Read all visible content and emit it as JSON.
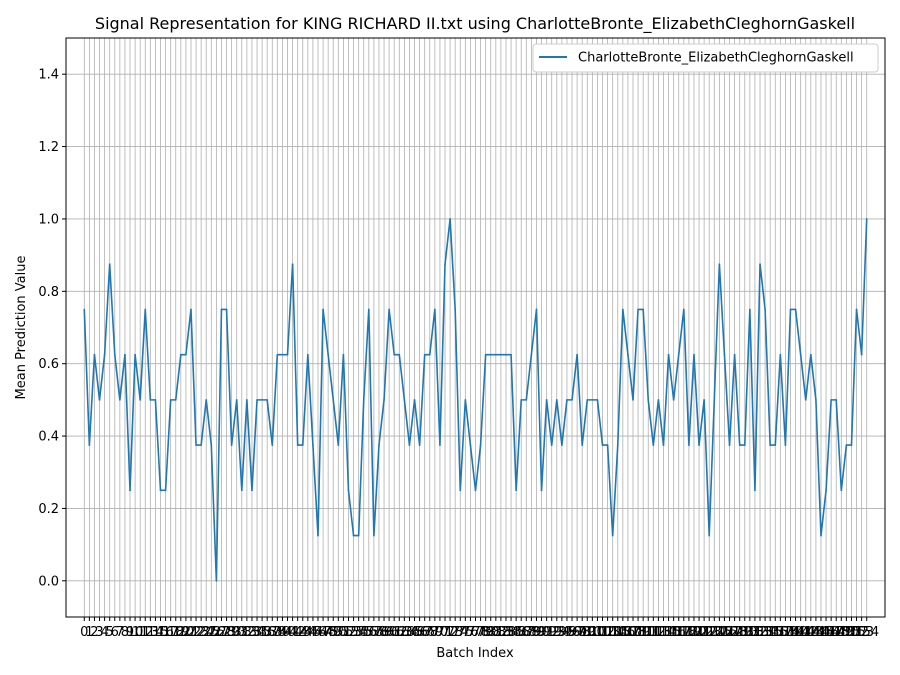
{
  "chart_data": {
    "type": "line",
    "title": "Signal Representation for KING RICHARD II.txt using CharlotteBronte_ElizabethCleghornGaskell",
    "xlabel": "Batch Index",
    "ylabel": "Mean Prediction Value",
    "xlim": [
      -3.6,
      157.6
    ],
    "ylim": [
      -0.1,
      1.5
    ],
    "yticks": [
      0.0,
      0.2,
      0.4,
      0.6,
      0.8,
      1.0,
      1.2,
      1.4
    ],
    "ytick_labels": [
      "0.0",
      "0.2",
      "0.4",
      "0.6",
      "0.8",
      "1.0",
      "1.2",
      "1.4"
    ],
    "grid": true,
    "legend_position": "top-right",
    "series": [
      {
        "name": "CharlotteBronte_ElizabethCleghornGaskell",
        "color": "#1f77b4",
        "values": [
          0.75,
          0.375,
          0.625,
          0.5,
          0.625,
          0.875,
          0.625,
          0.5,
          0.625,
          0.25,
          0.625,
          0.5,
          0.75,
          0.5,
          0.5,
          0.25,
          0.25,
          0.5,
          0.5,
          0.625,
          0.625,
          0.75,
          0.375,
          0.375,
          0.5,
          0.375,
          0.0,
          0.75,
          0.75,
          0.375,
          0.5,
          0.25,
          0.5,
          0.25,
          0.5,
          0.5,
          0.5,
          0.375,
          0.625,
          0.625,
          0.625,
          0.875,
          0.375,
          0.375,
          0.625,
          0.375,
          0.125,
          0.75,
          0.625,
          0.5,
          0.375,
          0.625,
          0.25,
          0.125,
          0.125,
          0.5,
          0.75,
          0.125,
          0.375,
          0.5,
          0.75,
          0.625,
          0.625,
          0.5,
          0.375,
          0.5,
          0.375,
          0.625,
          0.625,
          0.75,
          0.375,
          0.875,
          1.0,
          0.75,
          0.25,
          0.5,
          0.375,
          0.25,
          0.375,
          0.625,
          0.625,
          0.625,
          0.625,
          0.625,
          0.625,
          0.25,
          0.5,
          0.5,
          0.625,
          0.75,
          0.25,
          0.5,
          0.375,
          0.5,
          0.375,
          0.5,
          0.5,
          0.625,
          0.375,
          0.5,
          0.5,
          0.5,
          0.375,
          0.375,
          0.125,
          0.375,
          0.75,
          0.625,
          0.5,
          0.75,
          0.75,
          0.5,
          0.375,
          0.5,
          0.375,
          0.625,
          0.5,
          0.625,
          0.75,
          0.375,
          0.625,
          0.375,
          0.5,
          0.125,
          0.5,
          0.875,
          0.625,
          0.375,
          0.625,
          0.375,
          0.375,
          0.75,
          0.25,
          0.875,
          0.75,
          0.375,
          0.375,
          0.625,
          0.375,
          0.75,
          0.75,
          0.625,
          0.5,
          0.625,
          0.5,
          0.125,
          0.25,
          0.5,
          0.5,
          0.25,
          0.375,
          0.375,
          0.75,
          0.625,
          1.0
        ]
      }
    ]
  }
}
